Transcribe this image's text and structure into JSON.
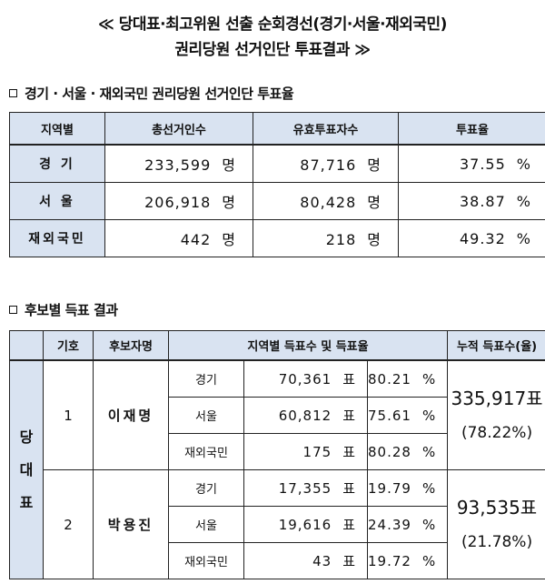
{
  "header": {
    "title_line1": "≪ 당대표·최고위원 선출 순회경선(경기·서울·재외국민)",
    "title_line2": "권리당원 선거인단 투표결과 ≫"
  },
  "section1": {
    "heading": "경기 · 서울 · 재외국민 권리당원 선거인단 투표율",
    "columns": [
      "지역별",
      "총선거인수",
      "유효투표자수",
      "투표율"
    ],
    "rows": [
      {
        "region": "경 기",
        "electors": "233,599",
        "voters": "87,716",
        "rate": "37.55"
      },
      {
        "region": "서 울",
        "electors": "206,918",
        "voters": "80,428",
        "rate": "38.87"
      },
      {
        "region": "재외국민",
        "electors": "442",
        "voters": "218",
        "rate": "49.32"
      }
    ],
    "unit_people": "명",
    "unit_percent": "%"
  },
  "section2": {
    "heading": "후보별 득표 결과",
    "columns": [
      "기호",
      "후보자명",
      "지역별 득표수 및 득표율",
      "누적 득표수(율)"
    ],
    "party_label": "당\n대\n표",
    "unit_votes": "표",
    "unit_percent": "%",
    "candidates": [
      {
        "number": "1",
        "name": "이재명",
        "regions": [
          {
            "region": "경기",
            "votes": "70,361",
            "rate": "80.21"
          },
          {
            "region": "서울",
            "votes": "60,812",
            "rate": "75.61"
          },
          {
            "region": "재외국민",
            "votes": "175",
            "rate": "80.28"
          }
        ],
        "cumulative_votes": "335,917표",
        "cumulative_rate": "(78.22%)"
      },
      {
        "number": "2",
        "name": "박용진",
        "regions": [
          {
            "region": "경기",
            "votes": "17,355",
            "rate": "19.79"
          },
          {
            "region": "서울",
            "votes": "19,616",
            "rate": "24.39"
          },
          {
            "region": "재외국민",
            "votes": "43",
            "rate": "19.72"
          }
        ],
        "cumulative_votes": "93,535표",
        "cumulative_rate": "(21.78%)"
      }
    ]
  }
}
